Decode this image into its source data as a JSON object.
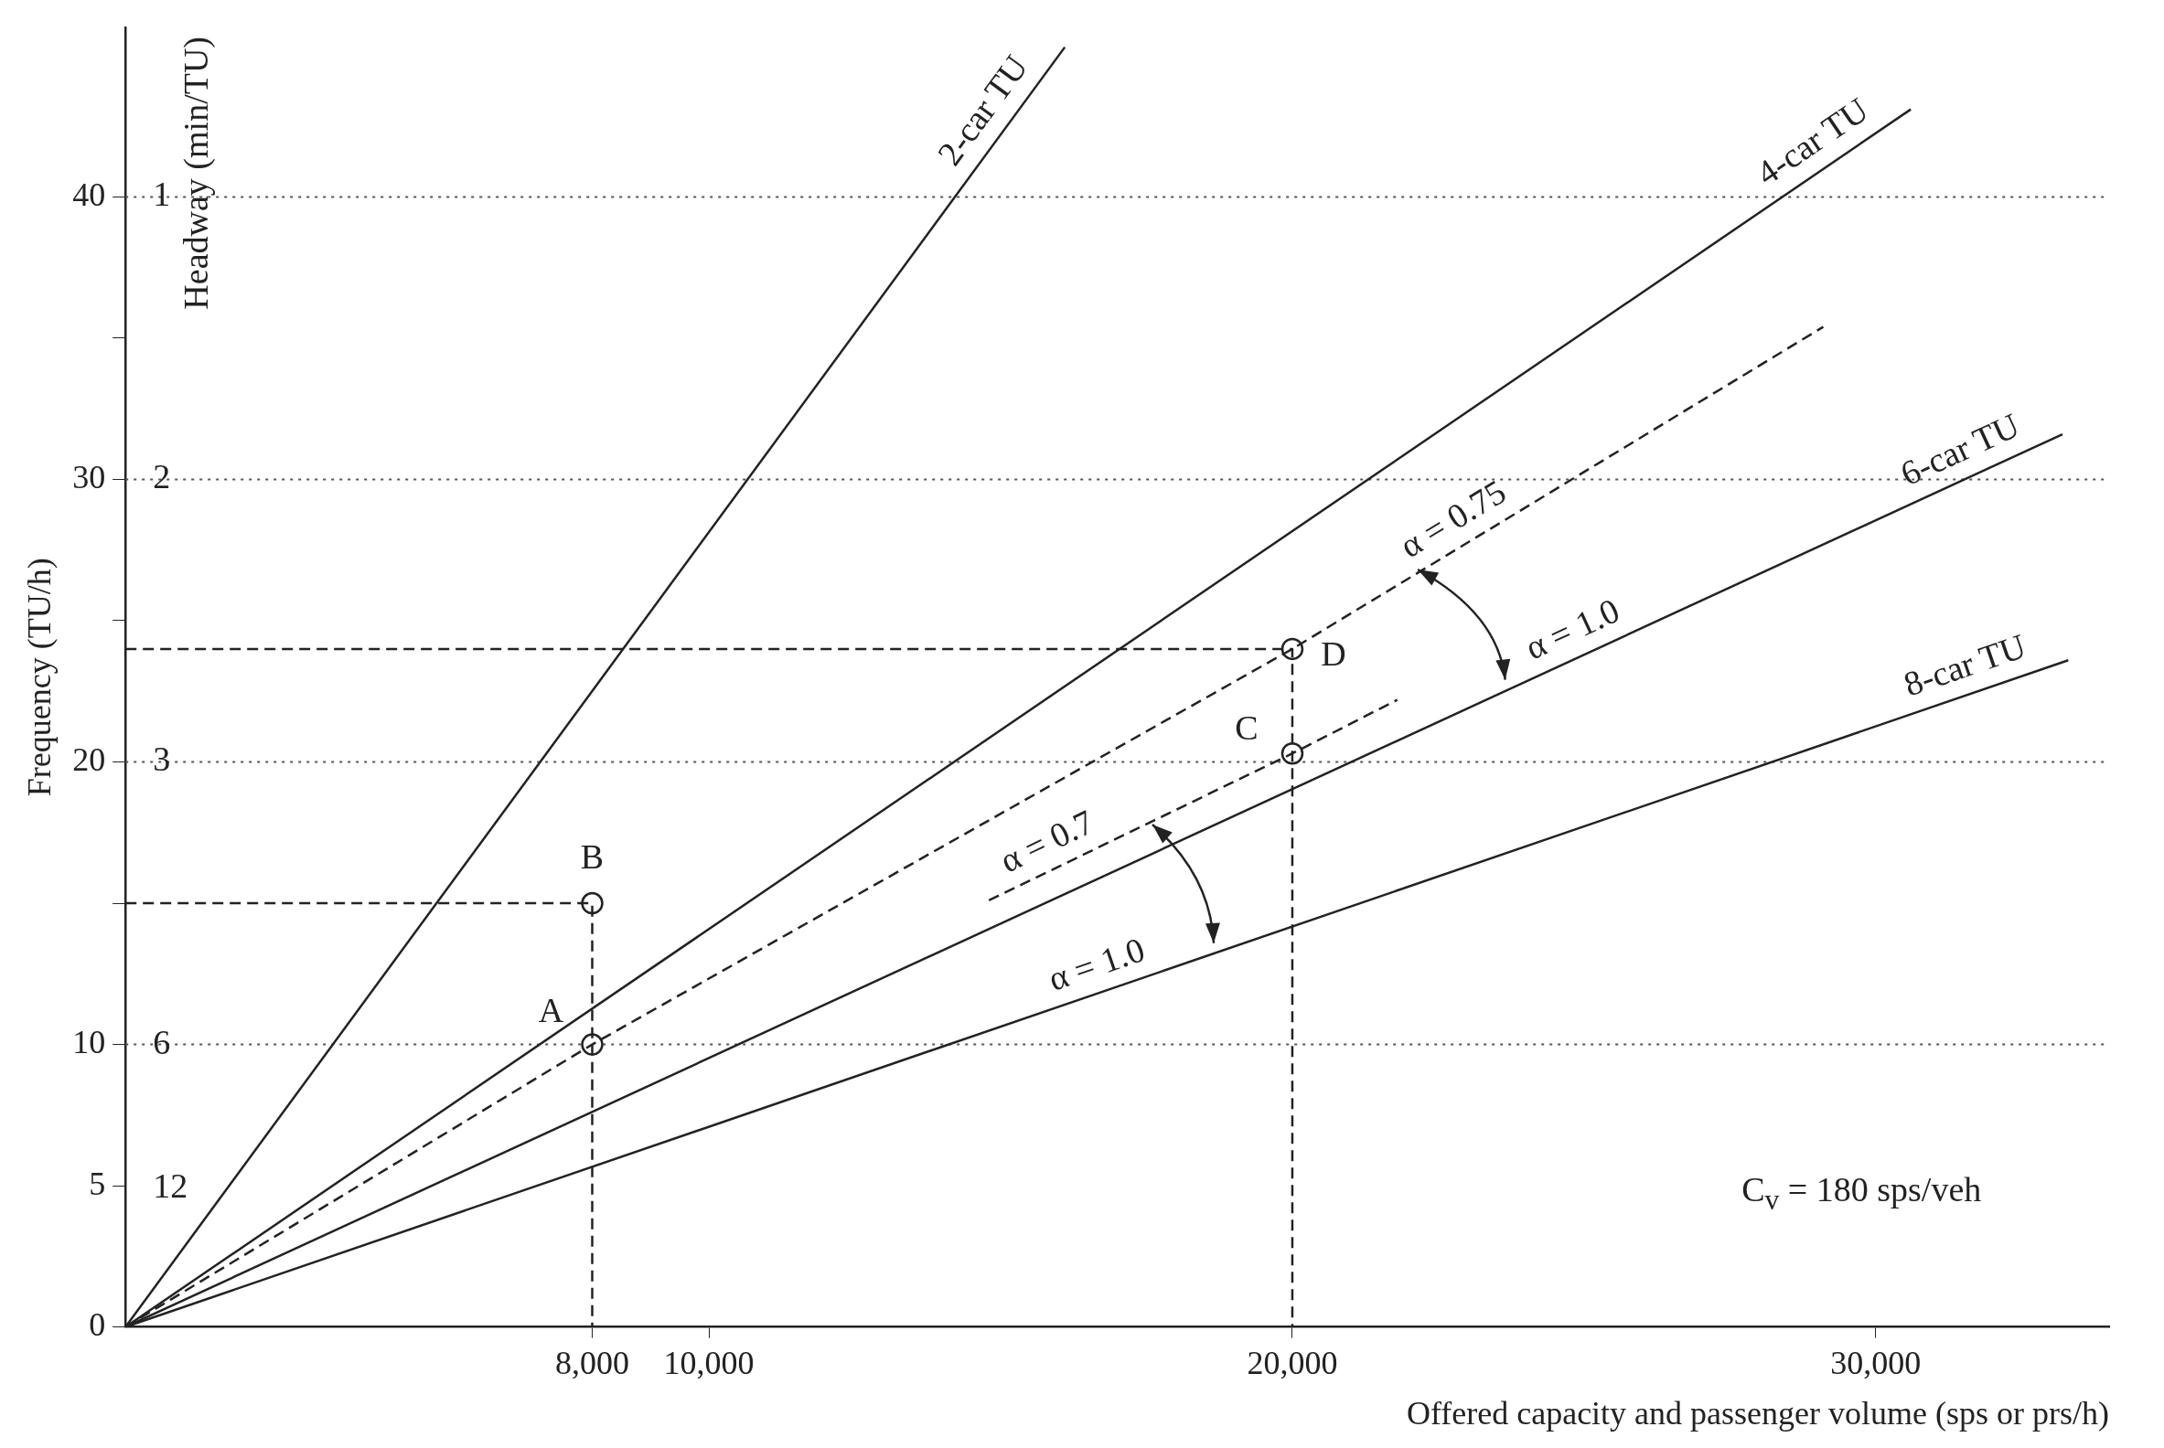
{
  "chart_data": {
    "type": "line",
    "xlabel": "Offered capacity and passenger volume (sps or prs/h)",
    "ylabel": "Frequency (TU/h)",
    "y2label": "Headway (min/TU)",
    "xlim": [
      0,
      34000
    ],
    "ylim": [
      0,
      46
    ],
    "xticks": [
      {
        "value": 8000,
        "label": "8,000"
      },
      {
        "value": 10000,
        "label": "10,000"
      },
      {
        "value": 20000,
        "label": "20,000"
      },
      {
        "value": 30000,
        "label": "30,000"
      }
    ],
    "yticks": [
      0,
      5,
      10,
      {
        "value": 15,
        "label": null
      },
      20,
      {
        "value": 25,
        "label": null
      },
      30,
      {
        "value": 35,
        "label": null
      },
      40
    ],
    "grid": false,
    "legend": false,
    "marker": "none",
    "line_style": "solid",
    "series": [
      {
        "name": "2-car TU",
        "color": "#222222",
        "x": [
          0,
          16100
        ],
        "values": [
          0,
          45.3
        ]
      },
      {
        "name": "4-car TU",
        "color": "#222222",
        "x": [
          0,
          30600
        ],
        "values": [
          0,
          43.1
        ]
      },
      {
        "name": "6-car TU",
        "color": "#222222",
        "x": [
          0,
          33200
        ],
        "values": [
          0,
          31.6
        ]
      },
      {
        "name": "8-car TU",
        "color": "#222222",
        "x": [
          0,
          33300
        ],
        "values": [
          0,
          23.6
        ]
      },
      {
        "color": "#222222",
        "line_style": "dashed",
        "x": [
          0,
          8000,
          20000,
          29100
        ],
        "values": [
          0,
          10,
          24,
          35.4
        ]
      },
      {
        "color": "#222222",
        "line_style": "dashed",
        "x": [
          14800,
          20000,
          21800
        ],
        "values": [
          15.1,
          20.3,
          22.2
        ]
      },
      {
        "color": "#222222",
        "line_style": "dashed",
        "x": [
          0,
          8000,
          8000
        ],
        "values": [
          15,
          15,
          0
        ]
      },
      {
        "color": "#222222",
        "line_style": "dashed",
        "x": [
          0,
          20000,
          20000
        ],
        "values": [
          24,
          24,
          0
        ]
      },
      {
        "type": "scatter",
        "color": "#222222",
        "marker": "circle",
        "x": [
          8000,
          8000,
          20000,
          20000
        ],
        "values": [
          10,
          15,
          20.3,
          24
        ]
      }
    ],
    "ref_lines": [
      {
        "axis": "y",
        "value": 10,
        "color": "#555555",
        "line_style": "dotted"
      },
      {
        "axis": "y",
        "value": 20,
        "color": "#555555",
        "line_style": "dotted"
      },
      {
        "axis": "y",
        "value": 30,
        "color": "#555555",
        "line_style": "dotted"
      },
      {
        "axis": "y",
        "value": 40,
        "color": "#555555",
        "line_style": "dotted"
      }
    ],
    "annotations": [
      {
        "text": "A",
        "x": 8000,
        "y": 10
      },
      {
        "text": "B",
        "x": 8000,
        "y": 15
      },
      {
        "text": "C",
        "x": 20000,
        "y": 20.3
      },
      {
        "text": "D",
        "x": 20000,
        "y": 24
      },
      {
        "text": "α = 0.75",
        "x": 23000,
        "y": 27.76
      },
      {
        "text": "α = 1.0",
        "x": 25000,
        "y": 23.8
      },
      {
        "text": "α = 0.7",
        "x": 16000,
        "y": 16.3
      },
      {
        "text": "α = 1.0",
        "x": 16800,
        "y": 11.9
      },
      {
        "text": "1",
        "x": 0,
        "y": 40
      },
      {
        "text": "2",
        "x": 0,
        "y": 30
      },
      {
        "text": "3",
        "x": 0,
        "y": 20
      },
      {
        "text": "6",
        "x": 0,
        "y": 10
      },
      "12",
      "C$_{v}$ = 180 sps/veh"
    ]
  }
}
